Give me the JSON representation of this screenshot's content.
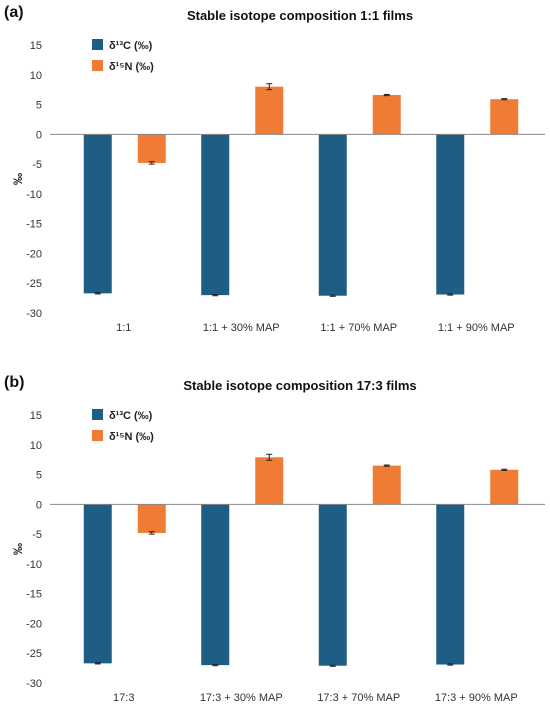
{
  "chart_data": [
    {
      "type": "bar",
      "panel_label": "(a)",
      "title": "Stable isotope composition 1:1  films",
      "ylabel": "‰",
      "xlabel": "",
      "ylim": [
        -30,
        15
      ],
      "yticks": [
        15,
        10,
        5,
        0,
        -5,
        -10,
        -15,
        -20,
        -25,
        -30
      ],
      "legend": "top-left",
      "categories": [
        "1:1",
        "1:1 + 30% MAP",
        "1:1 + 70% MAP",
        "1:1 + 90% MAP"
      ],
      "series": [
        {
          "name": "δ¹³C (‰)",
          "color": "#1f5e84",
          "values": [
            -26.7,
            -27.0,
            -27.1,
            -26.9
          ],
          "errors": [
            0.1,
            0.1,
            0.1,
            0.1
          ]
        },
        {
          "name": "δ¹⁵N (‰)",
          "color": "#f07b35",
          "values": [
            -4.8,
            8.0,
            6.6,
            5.9
          ],
          "errors": [
            0.2,
            0.5,
            0.1,
            0.1
          ]
        }
      ]
    },
    {
      "type": "bar",
      "panel_label": "(b)",
      "title": "Stable isotope composition 17:3  films",
      "ylabel": "‰",
      "xlabel": "",
      "ylim": [
        -30,
        15
      ],
      "yticks": [
        15,
        10,
        5,
        0,
        -5,
        -10,
        -15,
        -20,
        -25,
        -30
      ],
      "legend": "top-left",
      "categories": [
        "17:3",
        "17:3 + 30% MAP",
        "17:3 + 70% MAP",
        "17:3 + 90% MAP"
      ],
      "series": [
        {
          "name": "δ¹³C (‰)",
          "color": "#1f5e84",
          "values": [
            -26.7,
            -27.0,
            -27.1,
            -26.9
          ],
          "errors": [
            0.1,
            0.1,
            0.1,
            0.1
          ]
        },
        {
          "name": "δ¹⁵N (‰)",
          "color": "#f07b35",
          "values": [
            -4.8,
            7.9,
            6.5,
            5.8
          ],
          "errors": [
            0.2,
            0.5,
            0.1,
            0.1
          ]
        }
      ]
    }
  ]
}
